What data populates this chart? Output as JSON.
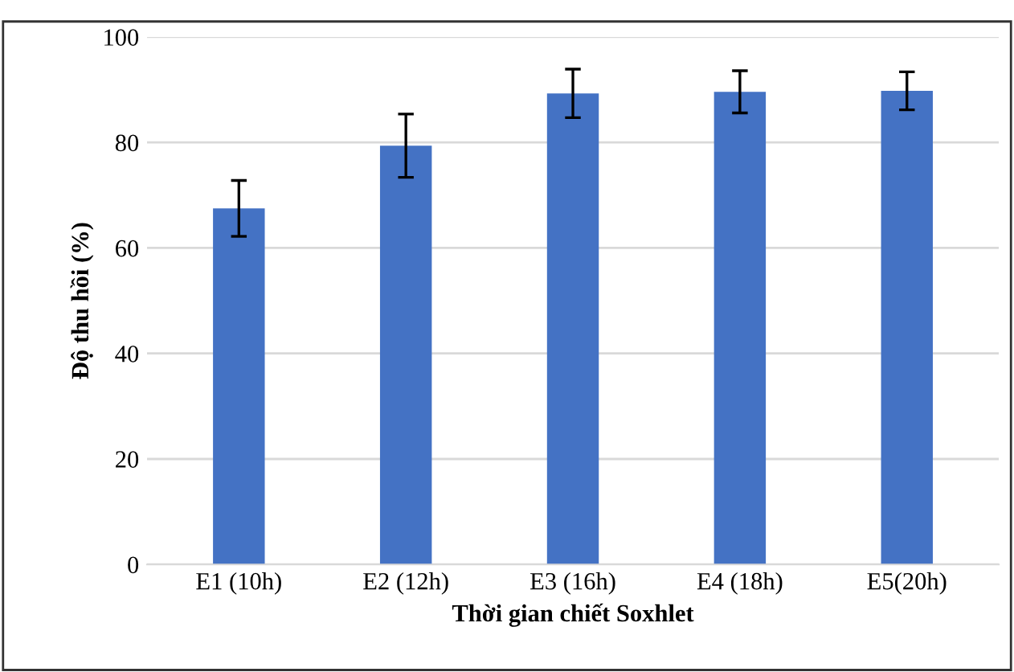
{
  "chart_data": {
    "type": "bar",
    "xlabel": "Thời gian chiết Soxhlet",
    "ylabel": "Độ thu hồi (%)",
    "categories": [
      "E1 (10h)",
      "E2 (12h)",
      "E3 (16h)",
      "E4 (18h)",
      "E5(20h)"
    ],
    "values": [
      67.5,
      79.4,
      89.3,
      89.6,
      89.8
    ],
    "errors": [
      5.3,
      6,
      4.6,
      4,
      3.6
    ],
    "color": "#4472c4",
    "ylim": [
      0,
      100
    ],
    "yticks": [
      0,
      20,
      40,
      60,
      80,
      100
    ],
    "grid": "y"
  }
}
